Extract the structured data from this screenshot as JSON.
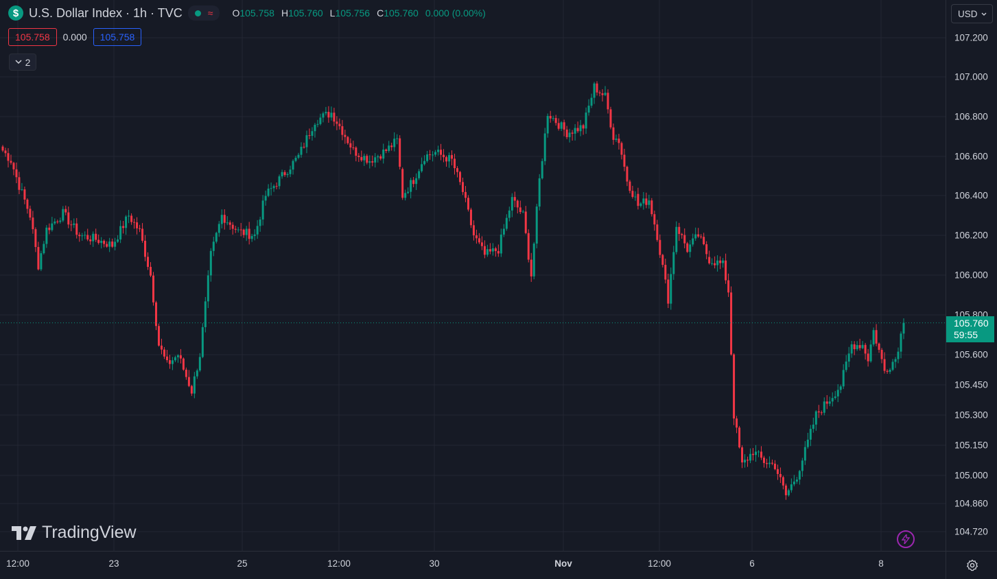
{
  "header": {
    "symbol_icon": "$",
    "title": "U.S. Dollar Index · 1h · TVC",
    "delay_icon": "≈",
    "ohlc": {
      "o_key": "O",
      "o_val": "105.758",
      "h_key": "H",
      "h_val": "105.760",
      "l_key": "L",
      "l_val": "105.756",
      "c_key": "C",
      "c_val": "105.760",
      "change": "0.000 (0.00%)"
    }
  },
  "quote": {
    "sell": "105.758",
    "spread": "0.000",
    "buy": "105.758"
  },
  "indicators_collapsed": {
    "count": "2"
  },
  "currency": "USD",
  "last_price": {
    "price": "105.760",
    "countdown": "59:55"
  },
  "watermark": "TradingView",
  "colors": {
    "up": "#089981",
    "down": "#f23645",
    "background": "#161a25",
    "grid": "#232632"
  },
  "icons": {
    "symbol": "dollar-icon",
    "delay": "delayed-data-icon",
    "collapse": "chevron-down-icon",
    "currency": "chevron-down-icon",
    "replay": "lightning-icon",
    "settings": "gear-icon"
  },
  "chart_data": {
    "type": "candlestick",
    "title": "U.S. Dollar Index · 1h · TVC",
    "ylim": [
      104.69,
      107.36
    ],
    "y_ticks": [
      "107.200",
      "107.000",
      "106.800",
      "106.600",
      "106.400",
      "106.200",
      "106.000",
      "105.800",
      "105.600",
      "105.450",
      "105.300",
      "105.150",
      "105.000",
      "104.860",
      "104.720"
    ],
    "x_ticks": [
      "12:00",
      "23",
      "25",
      "12:00",
      "30",
      "Nov",
      "12:00",
      "6",
      "8"
    ],
    "x_ticks_bold": [
      "Nov"
    ],
    "grid": true,
    "last_close": 105.76,
    "keypoints": [
      {
        "i": 0,
        "p": 106.63
      },
      {
        "i": 3,
        "p": 106.58
      },
      {
        "i": 6,
        "p": 106.45
      },
      {
        "i": 10,
        "p": 106.3
      },
      {
        "i": 13,
        "p": 106.05
      },
      {
        "i": 16,
        "p": 106.23
      },
      {
        "i": 22,
        "p": 106.31
      },
      {
        "i": 28,
        "p": 106.2
      },
      {
        "i": 34,
        "p": 106.18
      },
      {
        "i": 40,
        "p": 106.15
      },
      {
        "i": 46,
        "p": 106.3
      },
      {
        "i": 50,
        "p": 106.22
      },
      {
        "i": 54,
        "p": 106.0
      },
      {
        "i": 57,
        "p": 105.65
      },
      {
        "i": 60,
        "p": 105.55
      },
      {
        "i": 64,
        "p": 105.6
      },
      {
        "i": 69,
        "p": 105.42
      },
      {
        "i": 72,
        "p": 105.6
      },
      {
        "i": 76,
        "p": 106.1
      },
      {
        "i": 80,
        "p": 106.3
      },
      {
        "i": 86,
        "p": 106.22
      },
      {
        "i": 92,
        "p": 106.2
      },
      {
        "i": 96,
        "p": 106.4
      },
      {
        "i": 102,
        "p": 106.5
      },
      {
        "i": 108,
        "p": 106.6
      },
      {
        "i": 114,
        "p": 106.78
      },
      {
        "i": 120,
        "p": 106.82
      },
      {
        "i": 124,
        "p": 106.73
      },
      {
        "i": 128,
        "p": 106.63
      },
      {
        "i": 134,
        "p": 106.58
      },
      {
        "i": 140,
        "p": 106.63
      },
      {
        "i": 144,
        "p": 106.68
      },
      {
        "i": 146,
        "p": 106.4
      },
      {
        "i": 150,
        "p": 106.48
      },
      {
        "i": 154,
        "p": 106.6
      },
      {
        "i": 158,
        "p": 106.62
      },
      {
        "i": 164,
        "p": 106.58
      },
      {
        "i": 168,
        "p": 106.42
      },
      {
        "i": 172,
        "p": 106.2
      },
      {
        "i": 176,
        "p": 106.1
      },
      {
        "i": 181,
        "p": 106.13
      },
      {
        "i": 186,
        "p": 106.38
      },
      {
        "i": 190,
        "p": 106.3
      },
      {
        "i": 193,
        "p": 106.0
      },
      {
        "i": 196,
        "p": 106.48
      },
      {
        "i": 199,
        "p": 106.82
      },
      {
        "i": 206,
        "p": 106.72
      },
      {
        "i": 212,
        "p": 106.75
      },
      {
        "i": 216,
        "p": 106.95
      },
      {
        "i": 220,
        "p": 106.9
      },
      {
        "i": 223,
        "p": 106.7
      },
      {
        "i": 225,
        "p": 106.68
      },
      {
        "i": 228,
        "p": 106.48
      },
      {
        "i": 232,
        "p": 106.35
      },
      {
        "i": 236,
        "p": 106.38
      },
      {
        "i": 239,
        "p": 106.2
      },
      {
        "i": 243,
        "p": 105.88
      },
      {
        "i": 246,
        "p": 106.25
      },
      {
        "i": 250,
        "p": 106.13
      },
      {
        "i": 254,
        "p": 106.2
      },
      {
        "i": 258,
        "p": 106.08
      },
      {
        "i": 263,
        "p": 106.05
      },
      {
        "i": 265,
        "p": 105.92
      },
      {
        "i": 267,
        "p": 105.3
      },
      {
        "i": 270,
        "p": 105.05
      },
      {
        "i": 274,
        "p": 105.12
      },
      {
        "i": 278,
        "p": 105.07
      },
      {
        "i": 282,
        "p": 105.05
      },
      {
        "i": 286,
        "p": 104.9
      },
      {
        "i": 290,
        "p": 105.0
      },
      {
        "i": 293,
        "p": 105.12
      },
      {
        "i": 297,
        "p": 105.3
      },
      {
        "i": 302,
        "p": 105.38
      },
      {
        "i": 306,
        "p": 105.45
      },
      {
        "i": 310,
        "p": 105.65
      },
      {
        "i": 314,
        "p": 105.65
      },
      {
        "i": 316,
        "p": 105.58
      },
      {
        "i": 318,
        "p": 105.72
      },
      {
        "i": 322,
        "p": 105.52
      },
      {
        "i": 326,
        "p": 105.58
      },
      {
        "i": 329,
        "p": 105.76
      }
    ],
    "gaps_before_index": [
      146,
      232,
      258
    ]
  }
}
